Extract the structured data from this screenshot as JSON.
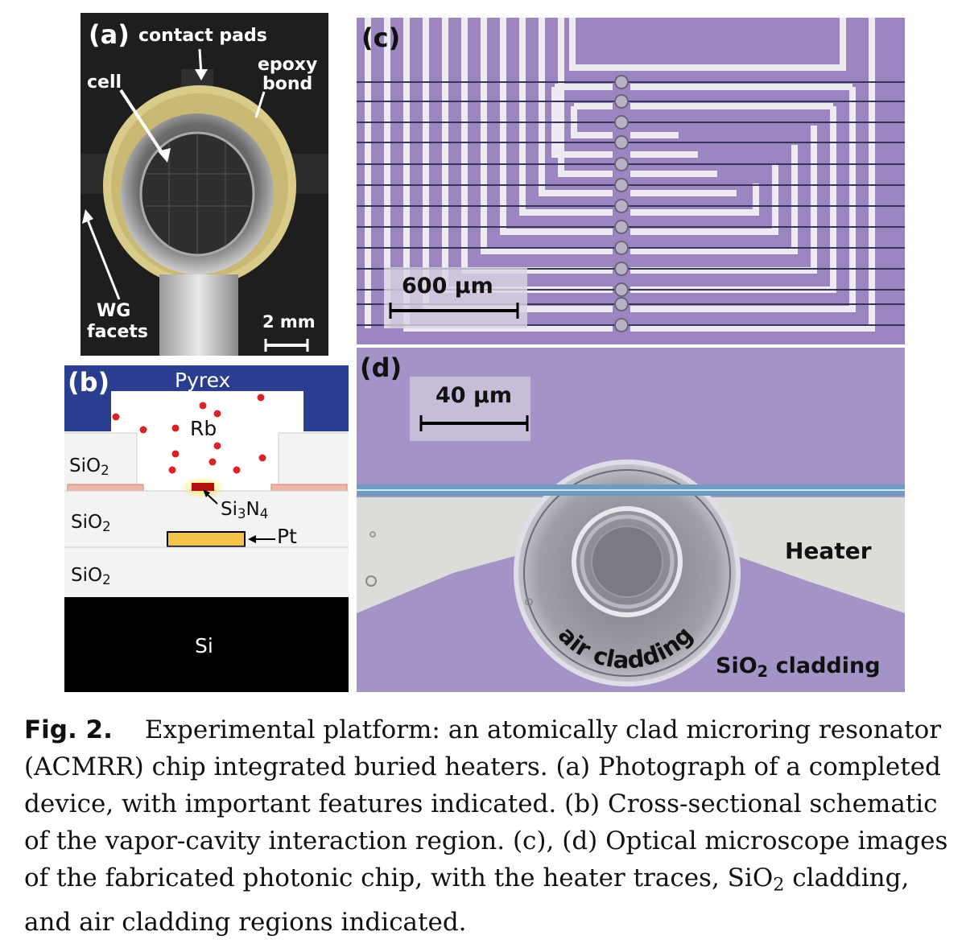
{
  "panel_a": {
    "label": "(a)",
    "contact_pads": "contact pads",
    "cell": "cell",
    "epoxy_line1": "epoxy",
    "epoxy_line2": "bond",
    "wg_line1": "WG",
    "wg_line2": "facets",
    "scale": "2 mm"
  },
  "panel_b": {
    "label": "(b)",
    "pyrex": "Pyrex",
    "rb": "Rb",
    "sio2_1": "SiO",
    "sio2_2": "SiO",
    "sio2_3": "SiO",
    "sub2": "2",
    "si3n4_a": "Si",
    "si3n4_3": "3",
    "si3n4_b": "N",
    "si3n4_4": "4",
    "pt": "Pt",
    "si": "Si"
  },
  "panel_c": {
    "label": "(c)",
    "scale": "600 µm"
  },
  "panel_d": {
    "label": "(d)",
    "scale": "40 µm",
    "heater": "Heater",
    "air_cladding": "air cladding",
    "sio2_cladding_a": "SiO",
    "sio2_cladding_sub": "2",
    "sio2_cladding_b": " cladding"
  },
  "caption": {
    "fig_label": "Fig. 2.",
    "text_1": "Experimental platform: an atomically clad microring resonator (ACMRR) chip integrated buried heaters. (a) Photograph of a completed device, with important features indicated. (b) Cross-sectional schematic of the vapor-cavity interaction region. (c), (d) Optical microscope images of the fabricated photonic chip, with the heater traces, SiO",
    "sub_2": "2",
    "text_2": " cladding, and air cladding regions indicated."
  }
}
